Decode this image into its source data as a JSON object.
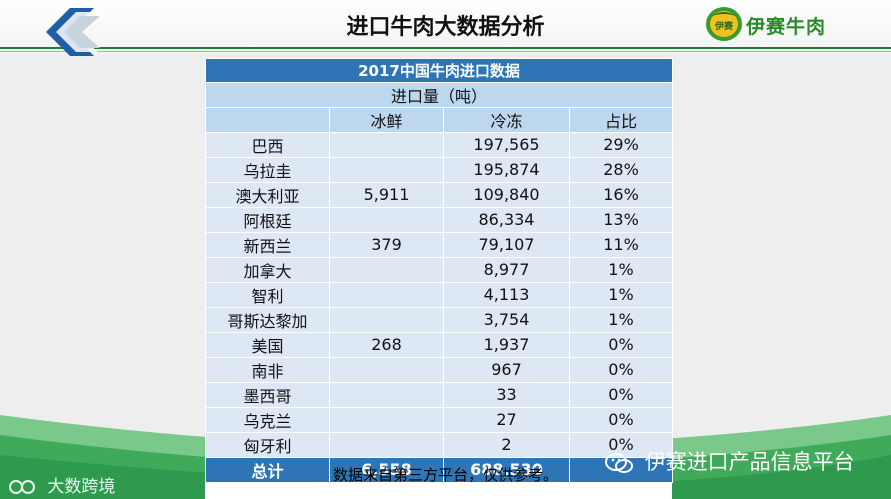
{
  "header": {
    "title": "进口牛肉大数据分析",
    "brand_name": "伊赛牛肉",
    "brand_badge": "伊赛"
  },
  "table": {
    "title": "2017中国牛肉进口数据",
    "subtitle": "进口量（吨）",
    "columns": [
      "",
      "冰鲜",
      "冷冻",
      "占比"
    ],
    "rows": [
      {
        "country": "巴西",
        "chilled": "",
        "frozen": "197,565",
        "share": "29%"
      },
      {
        "country": "乌拉圭",
        "chilled": "",
        "frozen": "195,874",
        "share": "28%"
      },
      {
        "country": "澳大利亚",
        "chilled": "5,911",
        "frozen": "109,840",
        "share": "16%"
      },
      {
        "country": "阿根廷",
        "chilled": "",
        "frozen": "86,334",
        "share": "13%"
      },
      {
        "country": "新西兰",
        "chilled": "379",
        "frozen": "79,107",
        "share": "11%"
      },
      {
        "country": "加拿大",
        "chilled": "",
        "frozen": "8,977",
        "share": "1%"
      },
      {
        "country": "智利",
        "chilled": "",
        "frozen": "4,113",
        "share": "1%"
      },
      {
        "country": "哥斯达黎加",
        "chilled": "",
        "frozen": "3,754",
        "share": "1%"
      },
      {
        "country": "美国",
        "chilled": "268",
        "frozen": "1,937",
        "share": "0%"
      },
      {
        "country": "南非",
        "chilled": "",
        "frozen": "967",
        "share": "0%"
      },
      {
        "country": "墨西哥",
        "chilled": "",
        "frozen": "33",
        "share": "0%"
      },
      {
        "country": "乌克兰",
        "chilled": "",
        "frozen": "27",
        "share": "0%"
      },
      {
        "country": "匈牙利",
        "chilled": "",
        "frozen": "2",
        "share": "0%"
      }
    ],
    "total": {
      "label": "总计",
      "chilled": "6,558",
      "frozen": "688,530",
      "share": ""
    }
  },
  "footer": {
    "note": "数据来自第三方平台，仅供参考。",
    "watermark_left": "大数跨境",
    "watermark_right": "伊赛进口产品信息平台"
  },
  "colors": {
    "table_header": "#2e75b6",
    "table_subheader": "#bdd7ee",
    "table_body": "#dde8f4",
    "brand_green": "#2a8a2a"
  }
}
